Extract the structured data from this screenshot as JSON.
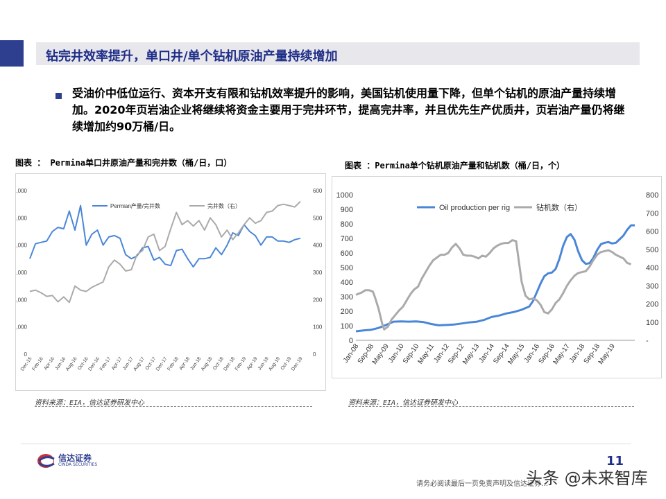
{
  "title": "钻完井效率提升，单口井/单个钻机原油产量持续增加",
  "intro": "受油价中低位运行、资本开支有限和钻机效率提升的影响，美国钻机使用量下降，但单个钻机的原油产量持续增加。2020年页岩油企业将继续将资金主要用于完井环节，提高完井率，并且优先生产优质井，页岩油产量仍将继续增加约90万桶/日。",
  "source_label": "资料来源：EIA，信达证券研发中心",
  "page_number": "11",
  "disclaimer": "请务必阅读最后一页免责声明及信达证券…",
  "watermark": "头条 @未来智库",
  "logo_text": "信达证券",
  "logo_subtext": "CINDA SECURITIES",
  "colors": {
    "primary_line": "#4a86d8",
    "secondary_line": "#aaaaaa",
    "brand": "#1f2e88"
  },
  "chart_data": [
    {
      "type": "line",
      "title": "图表 ： Permina单口井原油产量和完井数（桶/日，口）",
      "x": [
        "Dec-15",
        "Jan-16",
        "Feb-16",
        "Mar-16",
        "Apr-16",
        "May-16",
        "Jun-16",
        "Jul-16",
        "Aug-16",
        "Sep-16",
        "Oct-16",
        "Nov-16",
        "Dec-16",
        "Jan-17",
        "Feb-17",
        "Mar-17",
        "Apr-17",
        "May-17",
        "Jun-17",
        "Jul-17",
        "Aug-17",
        "Sep-17",
        "Oct-17",
        "Nov-17",
        "Dec-17",
        "Jan-18",
        "Feb-18",
        "Mar-18",
        "Apr-18",
        "May-18",
        "Jun-18",
        "Jul-18",
        "Aug-18",
        "Sep-18",
        "Oct-18",
        "Nov-18",
        "Dec-18",
        "Jan-19",
        "Feb-19",
        "Mar-19",
        "Apr-19",
        "May-19",
        "Jun-19",
        "Jul-19",
        "Aug-19",
        "Sep-19",
        "Oct-19",
        "Nov-19",
        "Dec-19"
      ],
      "xticks": [
        "Dec-15",
        "Feb-16",
        "Apr-16",
        "Jun-16",
        "Aug-16",
        "Oct-16",
        "Dec-16",
        "Feb-17",
        "Apr-17",
        "Jun-17",
        "Aug-17",
        "Oct-17",
        "Dec-17",
        "Feb-18",
        "Apr-18",
        "Jun-18",
        "Aug-18",
        "Oct-18",
        "Dec-18",
        "Feb-19",
        "Apr-19",
        "Jun-19",
        "Aug-19",
        "Oct-19",
        "Dec-19"
      ],
      "series": [
        {
          "name": "Permian产量/完井数",
          "axis": "left",
          "color": "#4a86d8",
          "values": [
            7000,
            8100,
            8200,
            8300,
            9000,
            9300,
            9200,
            10500,
            9100,
            10900,
            8000,
            8800,
            9100,
            8000,
            8600,
            8700,
            8500,
            7300,
            7000,
            7200,
            7800,
            7900,
            6900,
            7100,
            6600,
            6500,
            7600,
            7700,
            7000,
            6400,
            7000,
            7000,
            7100,
            7800,
            7300,
            8000,
            8900,
            8700,
            9500,
            9000,
            8700,
            8000,
            8600,
            8600,
            8300,
            8300,
            8200,
            8400,
            8500
          ]
        },
        {
          "name": "完井数（右）",
          "axis": "right",
          "color": "#aaaaaa",
          "values": [
            230,
            235,
            225,
            212,
            215,
            192,
            210,
            190,
            250,
            235,
            230,
            245,
            255,
            265,
            320,
            345,
            330,
            305,
            310,
            365,
            380,
            430,
            440,
            380,
            395,
            460,
            520,
            475,
            490,
            470,
            490,
            455,
            500,
            475,
            430,
            455,
            420,
            445,
            475,
            500,
            480,
            490,
            520,
            525,
            545,
            550,
            545,
            540,
            560
          ]
        }
      ],
      "ylim_left": [
        0,
        12000
      ],
      "yticks_left": [
        "0",
        "2,000",
        "4,000",
        "6,000",
        "8,000",
        "10,000",
        "12,000"
      ],
      "ylim_right": [
        0,
        600
      ],
      "yticks_right": [
        "0",
        "100",
        "200",
        "300",
        "400",
        "500",
        "600"
      ],
      "legend": "top-center"
    },
    {
      "type": "line",
      "title": "图表 ：Permina单个钻机原油产量和钻机数（桶/日，个）",
      "xticks": [
        "Jan-08",
        "Sep-08",
        "May-09",
        "Jan-10",
        "Sep-10",
        "May-11",
        "Jan-12",
        "Sep-12",
        "May-13",
        "Jan-14",
        "Sep-14",
        "May-15",
        "Jan-16",
        "Sep-16",
        "May-17",
        "Jan-18",
        "Sep-18",
        "May-19"
      ],
      "series": [
        {
          "name": "Oil production per rig",
          "axis": "left",
          "color": "#4a86d8",
          "points": [
            [
              0,
              62
            ],
            [
              4,
              68
            ],
            [
              8,
              72
            ],
            [
              12,
              85
            ],
            [
              16,
              105
            ],
            [
              20,
              128
            ],
            [
              24,
              130
            ],
            [
              28,
              128
            ],
            [
              32,
              130
            ],
            [
              36,
              125
            ],
            [
              40,
              112
            ],
            [
              44,
              103
            ],
            [
              48,
              105
            ],
            [
              52,
              108
            ],
            [
              56,
              115
            ],
            [
              60,
              123
            ],
            [
              64,
              127
            ],
            [
              68,
              140
            ],
            [
              72,
              160
            ],
            [
              76,
              170
            ],
            [
              80,
              185
            ],
            [
              84,
              195
            ],
            [
              88,
              210
            ],
            [
              92,
              232
            ],
            [
              94,
              270
            ],
            [
              96,
              330
            ],
            [
              98,
              390
            ],
            [
              100,
              440
            ],
            [
              102,
              460
            ],
            [
              104,
              465
            ],
            [
              106,
              490
            ],
            [
              108,
              560
            ],
            [
              110,
              650
            ],
            [
              112,
              710
            ],
            [
              114,
              730
            ],
            [
              116,
              690
            ],
            [
              118,
              610
            ],
            [
              120,
              550
            ],
            [
              122,
              525
            ],
            [
              124,
              530
            ],
            [
              126,
              565
            ],
            [
              128,
              620
            ],
            [
              130,
              660
            ],
            [
              132,
              670
            ],
            [
              134,
              675
            ],
            [
              136,
              665
            ],
            [
              138,
              670
            ],
            [
              140,
              695
            ],
            [
              142,
              720
            ],
            [
              144,
              760
            ],
            [
              146,
              790
            ],
            [
              148,
              790
            ]
          ]
        },
        {
          "name": "钻机数（右）",
          "axis": "right",
          "color": "#aaaaaa",
          "points": [
            [
              0,
              250
            ],
            [
              3,
              262
            ],
            [
              5,
              275
            ],
            [
              7,
              275
            ],
            [
              9,
              268
            ],
            [
              10,
              240
            ],
            [
              12,
              175
            ],
            [
              14,
              90
            ],
            [
              15,
              60
            ],
            [
              17,
              75
            ],
            [
              19,
              115
            ],
            [
              21,
              140
            ],
            [
              23,
              165
            ],
            [
              25,
              185
            ],
            [
              27,
              220
            ],
            [
              29,
              255
            ],
            [
              31,
              280
            ],
            [
              33,
              295
            ],
            [
              35,
              340
            ],
            [
              37,
              375
            ],
            [
              39,
              410
            ],
            [
              41,
              440
            ],
            [
              43,
              455
            ],
            [
              45,
              470
            ],
            [
              47,
              470
            ],
            [
              49,
              480
            ],
            [
              51,
              510
            ],
            [
              53,
              530
            ],
            [
              55,
              505
            ],
            [
              57,
              470
            ],
            [
              59,
              465
            ],
            [
              61,
              465
            ],
            [
              63,
              460
            ],
            [
              65,
              450
            ],
            [
              67,
              465
            ],
            [
              69,
              460
            ],
            [
              71,
              480
            ],
            [
              73,
              505
            ],
            [
              75,
              520
            ],
            [
              77,
              530
            ],
            [
              79,
              535
            ],
            [
              81,
              535
            ],
            [
              83,
              550
            ],
            [
              85,
              545
            ],
            [
              86,
              470
            ],
            [
              88,
              320
            ],
            [
              90,
              245
            ],
            [
              92,
              225
            ],
            [
              94,
              230
            ],
            [
              96,
              220
            ],
            [
              98,
              195
            ],
            [
              100,
              155
            ],
            [
              102,
              148
            ],
            [
              104,
              170
            ],
            [
              106,
              205
            ],
            [
              108,
              225
            ],
            [
              110,
              260
            ],
            [
              112,
              300
            ],
            [
              114,
              330
            ],
            [
              116,
              355
            ],
            [
              118,
              370
            ],
            [
              120,
              375
            ],
            [
              122,
              380
            ],
            [
              124,
              405
            ],
            [
              126,
              440
            ],
            [
              128,
              470
            ],
            [
              130,
              485
            ],
            [
              132,
              490
            ],
            [
              134,
              495
            ],
            [
              136,
              485
            ],
            [
              138,
              470
            ],
            [
              140,
              460
            ],
            [
              142,
              450
            ],
            [
              144,
              425
            ],
            [
              146,
              418
            ]
          ]
        }
      ],
      "x_count": 148,
      "ylim_left": [
        0,
        1000
      ],
      "yticks_left": [
        "0",
        "100",
        "200",
        "300",
        "400",
        "500",
        "600",
        "700",
        "800",
        "900",
        "1000"
      ],
      "ylim_right": [
        0,
        800
      ],
      "yticks_right": [
        "-",
        "100",
        "200",
        "300",
        "400",
        "500",
        "600",
        "700",
        "800"
      ],
      "legend": "top-left"
    }
  ]
}
